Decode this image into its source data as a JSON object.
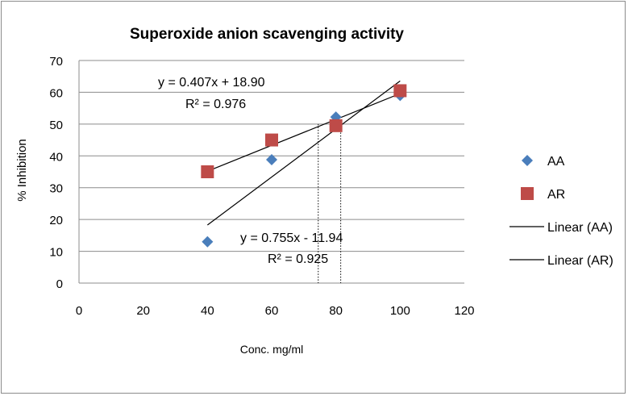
{
  "chart_data": {
    "type": "scatter",
    "title": "Superoxide anion scavenging activity",
    "xlabel": "Conc. mg/ml",
    "ylabel": "% Inhibition",
    "xlim": [
      0,
      120
    ],
    "ylim": [
      0,
      70
    ],
    "x_ticks": [
      0,
      20,
      40,
      60,
      80,
      100,
      120
    ],
    "y_ticks": [
      0,
      10,
      20,
      30,
      40,
      50,
      60,
      70
    ],
    "grid": "horizontal",
    "legend_position": "right",
    "series": [
      {
        "name": "AA",
        "marker": "diamond",
        "color": "#4a7ebb",
        "x": [
          40,
          60,
          80,
          100
        ],
        "y": [
          13,
          38.8,
          52.2,
          59
        ]
      },
      {
        "name": "AR",
        "marker": "square",
        "color": "#be4b48",
        "x": [
          40,
          60,
          80,
          100
        ],
        "y": [
          35,
          45,
          49.5,
          60.5
        ]
      }
    ],
    "trendlines": [
      {
        "name": "Linear (AA)",
        "slope": 0.755,
        "intercept": -11.94,
        "x_range": [
          40,
          100
        ],
        "equation": "y = 0.755x - 11.94",
        "r2": "R² = 0.925"
      },
      {
        "name": "Linear (AR)",
        "slope": 0.407,
        "intercept": 18.9,
        "x_range": [
          40,
          100
        ],
        "equation": "y = 0.407x + 18.90",
        "r2": "R² = 0.976"
      }
    ],
    "reference_lines_x": [
      74.5,
      81.5
    ],
    "colors": {
      "grid": "#8c8c8c",
      "trendline": "#000000"
    }
  }
}
